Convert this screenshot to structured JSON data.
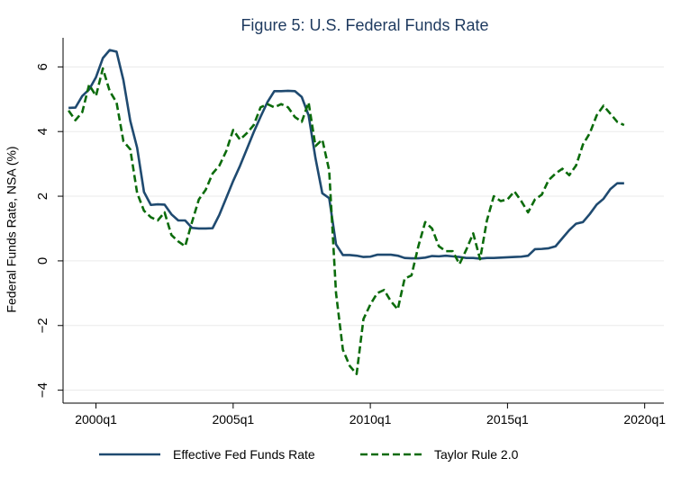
{
  "chart_data": {
    "type": "line",
    "title": "Figure 5: U.S. Federal Funds Rate",
    "xlabel": "",
    "ylabel": "Federal Funds Rate, NSA (%)",
    "xlim": [
      1998.8,
      2020.7
    ],
    "ylim": [
      -4.4,
      6.9
    ],
    "x_ticks": [
      {
        "value": 2000,
        "label": "2000q1"
      },
      {
        "value": 2005,
        "label": "2005q1"
      },
      {
        "value": 2010,
        "label": "2010q1"
      },
      {
        "value": 2015,
        "label": "2015q1"
      },
      {
        "value": 2020,
        "label": "2020q1"
      }
    ],
    "y_ticks": [
      {
        "value": -4,
        "label": "−4"
      },
      {
        "value": -2,
        "label": "−2"
      },
      {
        "value": 0,
        "label": "0"
      },
      {
        "value": 2,
        "label": "2"
      },
      {
        "value": 4,
        "label": "4"
      },
      {
        "value": 6,
        "label": "6"
      }
    ],
    "grid": true,
    "legend_position": "bottom",
    "series": [
      {
        "name": "Effective Fed Funds Rate",
        "color": "#1f4a70",
        "style": "solid",
        "points": [
          [
            1999.0,
            4.73
          ],
          [
            1999.25,
            4.74
          ],
          [
            1999.5,
            5.1
          ],
          [
            1999.75,
            5.3
          ],
          [
            2000.0,
            5.68
          ],
          [
            2000.25,
            6.27
          ],
          [
            2000.5,
            6.52
          ],
          [
            2000.75,
            6.47
          ],
          [
            2001.0,
            5.59
          ],
          [
            2001.25,
            4.33
          ],
          [
            2001.5,
            3.5
          ],
          [
            2001.75,
            2.13
          ],
          [
            2002.0,
            1.73
          ],
          [
            2002.25,
            1.75
          ],
          [
            2002.5,
            1.74
          ],
          [
            2002.75,
            1.44
          ],
          [
            2003.0,
            1.25
          ],
          [
            2003.25,
            1.25
          ],
          [
            2003.5,
            1.02
          ],
          [
            2003.75,
            1.0
          ],
          [
            2004.0,
            1.0
          ],
          [
            2004.25,
            1.01
          ],
          [
            2004.5,
            1.43
          ],
          [
            2004.75,
            1.95
          ],
          [
            2005.0,
            2.47
          ],
          [
            2005.25,
            2.94
          ],
          [
            2005.5,
            3.46
          ],
          [
            2005.75,
            3.98
          ],
          [
            2006.0,
            4.46
          ],
          [
            2006.25,
            4.91
          ],
          [
            2006.5,
            5.25
          ],
          [
            2006.75,
            5.25
          ],
          [
            2007.0,
            5.26
          ],
          [
            2007.25,
            5.25
          ],
          [
            2007.5,
            5.07
          ],
          [
            2007.75,
            4.5
          ],
          [
            2008.0,
            3.18
          ],
          [
            2008.25,
            2.09
          ],
          [
            2008.5,
            1.94
          ],
          [
            2008.75,
            0.51
          ],
          [
            2009.0,
            0.18
          ],
          [
            2009.25,
            0.18
          ],
          [
            2009.5,
            0.16
          ],
          [
            2009.75,
            0.12
          ],
          [
            2010.0,
            0.13
          ],
          [
            2010.25,
            0.19
          ],
          [
            2010.5,
            0.19
          ],
          [
            2010.75,
            0.19
          ],
          [
            2011.0,
            0.16
          ],
          [
            2011.25,
            0.09
          ],
          [
            2011.5,
            0.08
          ],
          [
            2011.75,
            0.08
          ],
          [
            2012.0,
            0.1
          ],
          [
            2012.25,
            0.15
          ],
          [
            2012.5,
            0.14
          ],
          [
            2012.75,
            0.16
          ],
          [
            2013.0,
            0.14
          ],
          [
            2013.25,
            0.12
          ],
          [
            2013.5,
            0.09
          ],
          [
            2013.75,
            0.09
          ],
          [
            2014.0,
            0.07
          ],
          [
            2014.25,
            0.09
          ],
          [
            2014.5,
            0.09
          ],
          [
            2014.75,
            0.1
          ],
          [
            2015.0,
            0.11
          ],
          [
            2015.25,
            0.12
          ],
          [
            2015.5,
            0.13
          ],
          [
            2015.75,
            0.16
          ],
          [
            2016.0,
            0.36
          ],
          [
            2016.25,
            0.37
          ],
          [
            2016.5,
            0.39
          ],
          [
            2016.75,
            0.45
          ],
          [
            2017.0,
            0.7
          ],
          [
            2017.25,
            0.95
          ],
          [
            2017.5,
            1.15
          ],
          [
            2017.75,
            1.2
          ],
          [
            2018.0,
            1.45
          ],
          [
            2018.25,
            1.74
          ],
          [
            2018.5,
            1.92
          ],
          [
            2018.75,
            2.22
          ],
          [
            2019.0,
            2.4
          ],
          [
            2019.25,
            2.4
          ]
        ]
      },
      {
        "name": "Taylor Rule 2.0",
        "color": "#0b6b0b",
        "style": "dashed",
        "points": [
          [
            1999.0,
            4.65
          ],
          [
            1999.25,
            4.35
          ],
          [
            1999.5,
            4.6
          ],
          [
            1999.75,
            5.45
          ],
          [
            2000.0,
            5.1
          ],
          [
            2000.25,
            5.95
          ],
          [
            2000.5,
            5.25
          ],
          [
            2000.75,
            4.9
          ],
          [
            2001.0,
            3.7
          ],
          [
            2001.25,
            3.45
          ],
          [
            2001.5,
            2.1
          ],
          [
            2001.75,
            1.55
          ],
          [
            2002.0,
            1.35
          ],
          [
            2002.25,
            1.25
          ],
          [
            2002.5,
            1.5
          ],
          [
            2002.75,
            0.8
          ],
          [
            2003.0,
            0.6
          ],
          [
            2003.25,
            0.45
          ],
          [
            2003.5,
            1.2
          ],
          [
            2003.75,
            1.9
          ],
          [
            2004.0,
            2.2
          ],
          [
            2004.25,
            2.7
          ],
          [
            2004.5,
            2.95
          ],
          [
            2004.75,
            3.4
          ],
          [
            2005.0,
            4.05
          ],
          [
            2005.25,
            3.75
          ],
          [
            2005.5,
            3.95
          ],
          [
            2005.75,
            4.2
          ],
          [
            2006.0,
            4.75
          ],
          [
            2006.25,
            4.85
          ],
          [
            2006.5,
            4.75
          ],
          [
            2006.75,
            4.85
          ],
          [
            2007.0,
            4.75
          ],
          [
            2007.25,
            4.45
          ],
          [
            2007.5,
            4.3
          ],
          [
            2007.75,
            4.9
          ],
          [
            2008.0,
            3.55
          ],
          [
            2008.25,
            3.75
          ],
          [
            2008.5,
            2.8
          ],
          [
            2008.75,
            -1.0
          ],
          [
            2009.0,
            -2.75
          ],
          [
            2009.25,
            -3.25
          ],
          [
            2009.5,
            -3.5
          ],
          [
            2009.75,
            -1.8
          ],
          [
            2010.0,
            -1.35
          ],
          [
            2010.25,
            -1.0
          ],
          [
            2010.5,
            -0.9
          ],
          [
            2010.75,
            -1.25
          ],
          [
            2011.0,
            -1.5
          ],
          [
            2011.25,
            -0.55
          ],
          [
            2011.5,
            -0.45
          ],
          [
            2011.75,
            0.45
          ],
          [
            2012.0,
            1.2
          ],
          [
            2012.25,
            1.0
          ],
          [
            2012.5,
            0.45
          ],
          [
            2012.75,
            0.3
          ],
          [
            2013.0,
            0.3
          ],
          [
            2013.25,
            -0.1
          ],
          [
            2013.5,
            0.35
          ],
          [
            2013.75,
            0.85
          ],
          [
            2014.0,
            0.05
          ],
          [
            2014.25,
            1.25
          ],
          [
            2014.5,
            2.0
          ],
          [
            2014.75,
            1.85
          ],
          [
            2015.0,
            1.9
          ],
          [
            2015.25,
            2.15
          ],
          [
            2015.5,
            1.85
          ],
          [
            2015.75,
            1.5
          ],
          [
            2016.0,
            1.9
          ],
          [
            2016.25,
            2.05
          ],
          [
            2016.5,
            2.5
          ],
          [
            2016.75,
            2.7
          ],
          [
            2017.0,
            2.85
          ],
          [
            2017.25,
            2.65
          ],
          [
            2017.5,
            2.95
          ],
          [
            2017.75,
            3.6
          ],
          [
            2018.0,
            3.95
          ],
          [
            2018.25,
            4.5
          ],
          [
            2018.5,
            4.8
          ],
          [
            2018.75,
            4.55
          ],
          [
            2019.0,
            4.3
          ],
          [
            2019.25,
            4.2
          ]
        ]
      }
    ]
  }
}
